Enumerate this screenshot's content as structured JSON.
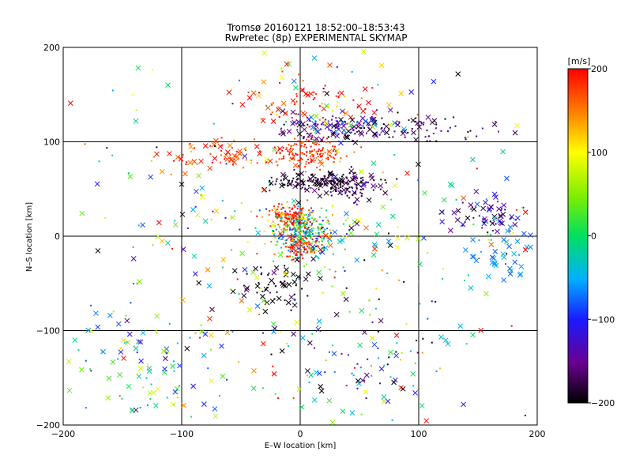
{
  "chart_data": {
    "type": "scatter",
    "title": "Tromsø 20160121 18:52:00–18:53:43",
    "subtitle": "RwPretec (8p) EXPERIMENTAL SKYMAP",
    "xlabel": "E–W location [km]",
    "ylabel": "N–S location [km]",
    "xlim": [
      -200,
      200
    ],
    "ylim": [
      -200,
      200
    ],
    "xticks": [
      -200,
      -100,
      0,
      100,
      200
    ],
    "yticks": [
      -200,
      -100,
      0,
      100,
      200
    ],
    "xtick_labels": [
      "−200",
      "−100",
      "0",
      "100",
      "200"
    ],
    "ytick_labels": [
      "−200",
      "−100",
      "0",
      "100",
      "200"
    ],
    "grid": true,
    "colorbar": {
      "label": "[m/s]",
      "range": [
        -200,
        200
      ],
      "ticks": [
        200,
        100,
        0,
        -100,
        -200
      ],
      "tick_labels": [
        "200",
        "100",
        "0",
        "−100",
        "−200"
      ],
      "colormap": "rainbow: black → purple → blue → cyan → green → yellow → orange → red"
    },
    "marker_types": [
      "x",
      "dot"
    ],
    "clusters": [
      {
        "x": 3,
        "y": 5,
        "sx": 12,
        "sy": 12,
        "n": 320,
        "v": -20,
        "vs": 70,
        "xfrac": 0.03
      },
      {
        "x": 5,
        "y": 88,
        "sx": 15,
        "sy": 8,
        "n": 160,
        "v": 180,
        "vs": 25,
        "xfrac": 0.05
      },
      {
        "x": -8,
        "y": 22,
        "sx": 10,
        "sy": 6,
        "n": 120,
        "v": 170,
        "vs": 30,
        "xfrac": 0.05
      },
      {
        "x": 2,
        "y": -12,
        "sx": 8,
        "sy": 6,
        "n": 90,
        "v": 180,
        "vs": 25,
        "xfrac": 0.05
      },
      {
        "x": 15,
        "y": 58,
        "sx": 22,
        "sy": 5,
        "n": 150,
        "v": -190,
        "vs": 20,
        "xfrac": 0.25
      },
      {
        "x": 45,
        "y": 52,
        "sx": 12,
        "sy": 8,
        "n": 70,
        "v": -170,
        "vs": 30,
        "xfrac": 0.4
      },
      {
        "x": 30,
        "y": 115,
        "sx": 25,
        "sy": 7,
        "n": 130,
        "v": -150,
        "vs": 50,
        "xfrac": 0.35
      },
      {
        "x": 10,
        "y": 140,
        "sx": 30,
        "sy": 15,
        "n": 90,
        "v": 180,
        "vs": 60,
        "xfrac": 0.3
      },
      {
        "x": -65,
        "y": 85,
        "sx": 25,
        "sy": 8,
        "n": 70,
        "v": 180,
        "vs": 30,
        "xfrac": 0.5
      },
      {
        "x": 160,
        "y": 20,
        "sx": 15,
        "sy": 10,
        "n": 60,
        "v": -140,
        "vs": 30,
        "xfrac": 0.5
      },
      {
        "x": 100,
        "y": 115,
        "sx": 40,
        "sy": 8,
        "n": 60,
        "v": -170,
        "vs": 30,
        "xfrac": 0.2
      },
      {
        "x": 170,
        "y": -20,
        "sx": 15,
        "sy": 15,
        "n": 40,
        "v": -60,
        "vs": 20,
        "xfrac": 0.8
      },
      {
        "x": -20,
        "y": -55,
        "sx": 20,
        "sy": 15,
        "n": 60,
        "v": -200,
        "vs": 20,
        "xfrac": 0.5
      },
      {
        "x": -130,
        "y": -140,
        "sx": 35,
        "sy": 30,
        "n": 90,
        "v": 0,
        "vs": 90,
        "xfrac": 0.6
      },
      {
        "x": 55,
        "y": -140,
        "sx": 30,
        "sy": 25,
        "n": 70,
        "v": -50,
        "vs": 120,
        "xfrac": 0.4
      },
      {
        "x": 0,
        "y": 0,
        "sx": 110,
        "sy": 110,
        "n": 420,
        "v": 0,
        "vs": 130,
        "xfrac": 0.5
      }
    ]
  }
}
